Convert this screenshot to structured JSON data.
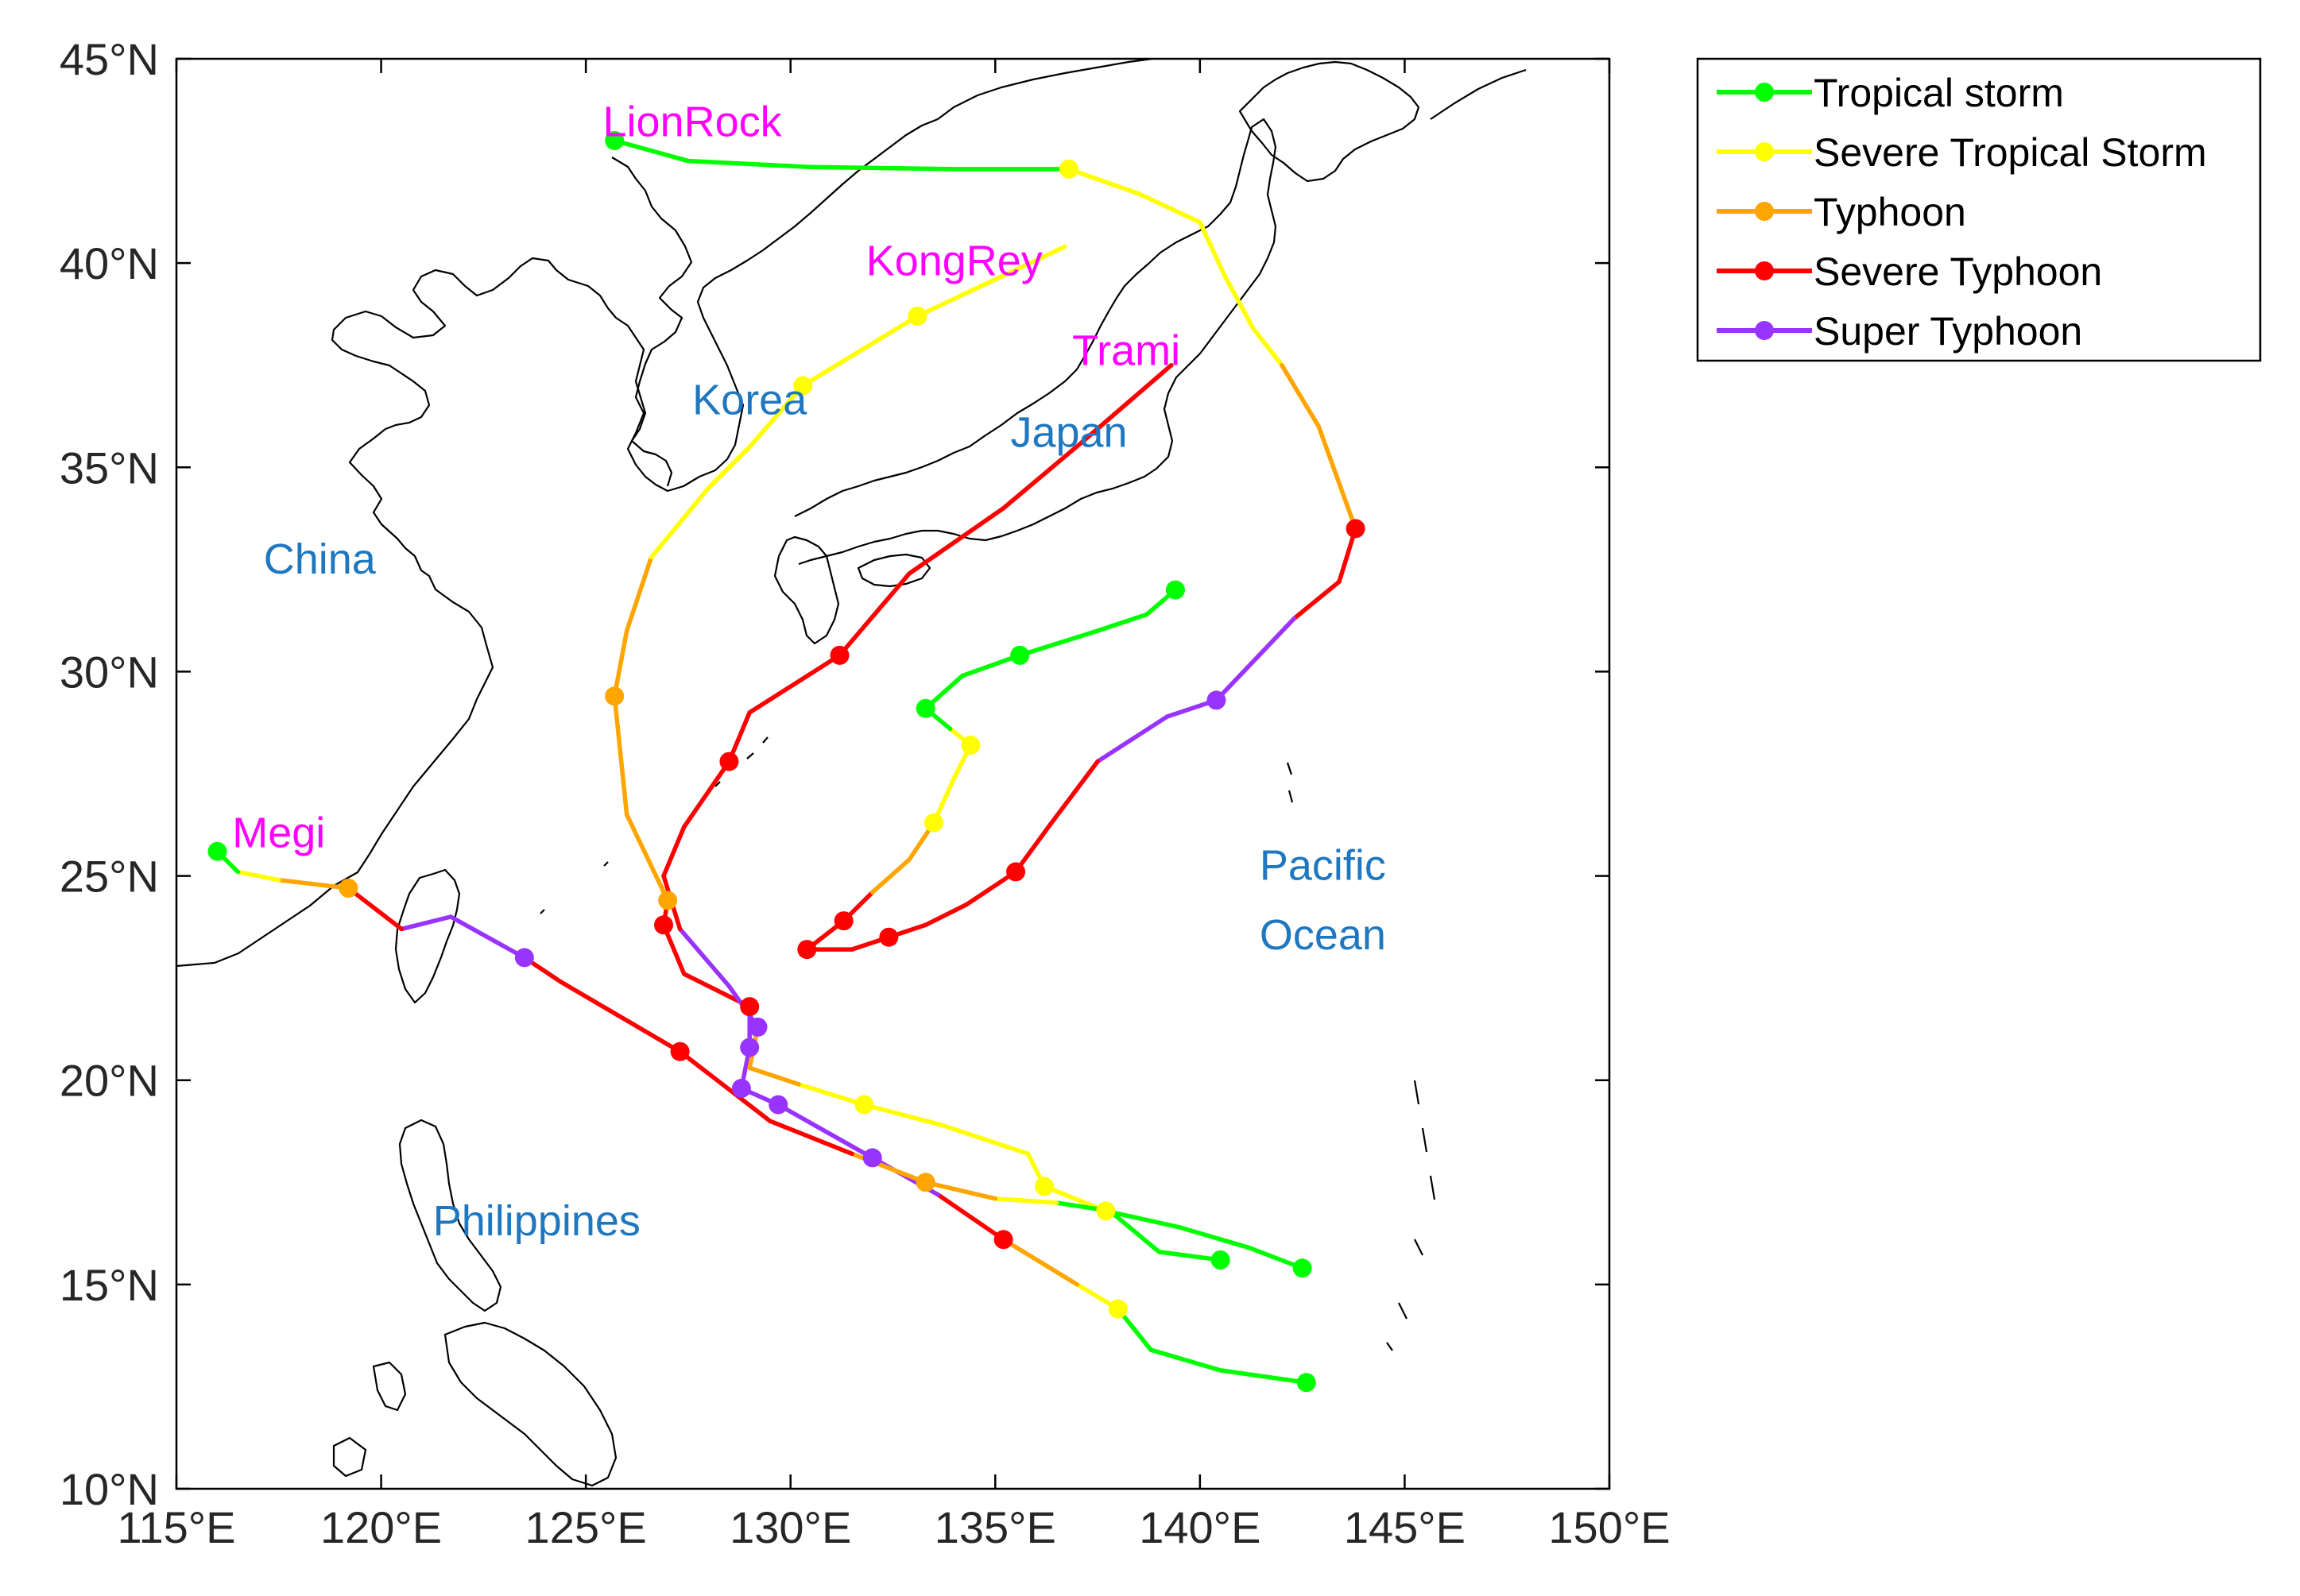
{
  "colors": {
    "Tropical storm": "#00ff00",
    "Severe Tropical Storm": "#ffff00",
    "Typhoon": "#ffa500",
    "Severe Typhoon": "#ff0000",
    "Super Typhoon": "#9933ff",
    "typhoon_name": "#ff00ff",
    "region_label": "#1f77c0",
    "coast": "#000000"
  },
  "axes": {
    "x_ticks": [
      {
        "value": 115,
        "label": "115°E"
      },
      {
        "value": 120,
        "label": "120°E"
      },
      {
        "value": 125,
        "label": "125°E"
      },
      {
        "value": 130,
        "label": "130°E"
      },
      {
        "value": 135,
        "label": "135°E"
      },
      {
        "value": 140,
        "label": "140°E"
      },
      {
        "value": 145,
        "label": "145°E"
      },
      {
        "value": 150,
        "label": "150°E"
      }
    ],
    "y_ticks": [
      {
        "value": 10,
        "label": "10°N"
      },
      {
        "value": 15,
        "label": "15°N"
      },
      {
        "value": 20,
        "label": "20°N"
      },
      {
        "value": 25,
        "label": "25°N"
      },
      {
        "value": 30,
        "label": "30°N"
      },
      {
        "value": 35,
        "label": "35°N"
      },
      {
        "value": 40,
        "label": "40°N"
      },
      {
        "value": 45,
        "label": "45°N"
      }
    ],
    "lon_range": [
      115,
      150
    ],
    "lat_range": [
      10,
      45
    ]
  },
  "legend": {
    "placement": "outside-top-right",
    "entries": [
      {
        "label": "Tropical storm",
        "category": "Tropical storm"
      },
      {
        "label": "Severe Tropical Storm",
        "category": "Severe Tropical Storm"
      },
      {
        "label": "Typhoon",
        "category": "Typhoon"
      },
      {
        "label": "Severe Typhoon",
        "category": "Severe Typhoon"
      },
      {
        "label": "Super Typhoon",
        "category": "Super Typhoon"
      }
    ]
  },
  "region_labels": [
    {
      "text": "Korea",
      "lon": 129.0,
      "lat": 36.3
    },
    {
      "text": "Japan",
      "lon": 136.8,
      "lat": 35.5
    },
    {
      "text": "China",
      "lon": 118.5,
      "lat": 32.4
    },
    {
      "text": "Pacific",
      "lon": 143.0,
      "lat": 24.9
    },
    {
      "text": "Ocean",
      "lon": 143.0,
      "lat": 23.2
    },
    {
      "text": "Philippines",
      "lon": 123.8,
      "lat": 16.2
    }
  ],
  "typhoon_names": [
    {
      "text": "LionRock",
      "lon": 127.6,
      "lat": 43.1
    },
    {
      "text": "KongRey",
      "lon": 134.0,
      "lat": 39.7
    },
    {
      "text": "Trami",
      "lon": 138.2,
      "lat": 37.5
    },
    {
      "text": "Megi",
      "lon": 117.5,
      "lat": 25.7
    }
  ],
  "tracks": [
    {
      "name": "LionRock",
      "points": [
        [
          125.7,
          43.0,
          "Tropical storm"
        ],
        [
          127.5,
          42.5,
          "Tropical storm"
        ],
        [
          130.5,
          42.35,
          "Tropical storm"
        ],
        [
          134.0,
          42.3,
          "Tropical storm"
        ],
        [
          136.8,
          42.3,
          "Severe Tropical Storm"
        ],
        [
          138.5,
          41.7,
          "Severe Tropical Storm"
        ],
        [
          140.0,
          41.0,
          "Severe Tropical Storm"
        ],
        [
          140.6,
          39.7,
          "Severe Tropical Storm"
        ],
        [
          141.3,
          38.4,
          "Severe Tropical Storm"
        ],
        [
          142.0,
          37.5,
          "Typhoon"
        ],
        [
          142.9,
          36.0,
          "Typhoon"
        ],
        [
          143.8,
          33.5,
          "Severe Typhoon"
        ],
        [
          143.4,
          32.2,
          "Severe Typhoon"
        ],
        [
          142.3,
          31.3,
          "Super Typhoon"
        ],
        [
          140.4,
          29.3,
          "Super Typhoon"
        ],
        [
          139.2,
          28.9,
          "Super Typhoon"
        ],
        [
          137.5,
          27.8,
          "Severe Typhoon"
        ],
        [
          136.3,
          26.2,
          "Severe Typhoon"
        ],
        [
          135.5,
          25.1,
          "Severe Typhoon"
        ],
        [
          134.3,
          24.3,
          "Severe Typhoon"
        ],
        [
          133.3,
          23.8,
          "Severe Typhoon"
        ],
        [
          132.4,
          23.5,
          "Severe Typhoon"
        ],
        [
          131.5,
          23.2,
          "Severe Typhoon"
        ],
        [
          130.4,
          23.2,
          "Severe Typhoon"
        ],
        [
          131.3,
          23.9,
          "Severe Typhoon"
        ],
        [
          132.0,
          24.6,
          "Typhoon"
        ],
        [
          132.9,
          25.4,
          "Typhoon"
        ],
        [
          133.5,
          26.3,
          "Severe Tropical Storm"
        ],
        [
          134.0,
          27.4,
          "Severe Tropical Storm"
        ],
        [
          134.4,
          28.2,
          "Severe Tropical Storm"
        ],
        [
          133.9,
          28.6,
          "Tropical storm"
        ],
        [
          133.3,
          29.1,
          "Tropical storm"
        ],
        [
          134.2,
          29.9,
          "Tropical storm"
        ],
        [
          135.6,
          30.4,
          "Tropical storm"
        ],
        [
          137.5,
          31.0,
          "Tropical storm"
        ],
        [
          138.7,
          31.4,
          "Tropical storm"
        ],
        [
          139.4,
          32.0,
          "Tropical storm"
        ]
      ],
      "markers": [
        [
          125.7,
          43.0
        ],
        [
          136.8,
          42.3
        ],
        [
          143.8,
          33.5
        ],
        [
          140.4,
          29.3
        ],
        [
          135.5,
          25.1
        ],
        [
          132.4,
          23.5
        ],
        [
          130.4,
          23.2
        ],
        [
          131.3,
          23.9
        ],
        [
          133.5,
          26.3
        ],
        [
          134.4,
          28.2
        ],
        [
          133.3,
          29.1
        ],
        [
          135.6,
          30.4
        ],
        [
          139.4,
          32.0
        ]
      ]
    },
    {
      "name": "KongRey",
      "points": [
        [
          142.6,
          12.6,
          "Tropical storm"
        ],
        [
          140.5,
          12.9,
          "Tropical storm"
        ],
        [
          138.8,
          13.4,
          "Tropical storm"
        ],
        [
          138.0,
          14.4,
          "Severe Tropical Storm"
        ],
        [
          137.0,
          15.0,
          "Typhoon"
        ],
        [
          135.2,
          16.1,
          "Severe Typhoon"
        ],
        [
          133.6,
          17.2,
          "Super Typhoon"
        ],
        [
          132.0,
          18.1,
          "Super Typhoon"
        ],
        [
          129.7,
          19.4,
          "Super Typhoon"
        ],
        [
          128.8,
          19.8,
          "Super Typhoon"
        ],
        [
          129.0,
          20.8,
          "Super Typhoon"
        ],
        [
          129.0,
          21.8,
          "Severe Typhoon"
        ],
        [
          127.4,
          22.6,
          "Severe Typhoon"
        ],
        [
          126.9,
          23.8,
          "Severe Typhoon"
        ],
        [
          127.0,
          24.4,
          "Typhoon"
        ],
        [
          126.0,
          26.5,
          "Typhoon"
        ],
        [
          125.7,
          29.4,
          "Typhoon"
        ],
        [
          126.0,
          31.0,
          "Typhoon"
        ],
        [
          126.6,
          32.8,
          "Severe Tropical Storm"
        ],
        [
          128.0,
          34.5,
          "Severe Tropical Storm"
        ],
        [
          129.0,
          35.5,
          "Severe Tropical Storm"
        ],
        [
          130.3,
          37.0,
          "Severe Tropical Storm"
        ],
        [
          133.1,
          38.7,
          "Severe Tropical Storm"
        ],
        [
          135.0,
          39.6,
          "Severe Tropical Storm"
        ],
        [
          136.7,
          40.4,
          "Severe Tropical Storm"
        ]
      ],
      "markers": [
        [
          142.6,
          12.6
        ],
        [
          138.0,
          14.4
        ],
        [
          135.2,
          16.1
        ],
        [
          132.0,
          18.1
        ],
        [
          129.7,
          19.4
        ],
        [
          128.8,
          19.8
        ],
        [
          129.0,
          20.8
        ],
        [
          129.0,
          21.8
        ],
        [
          126.9,
          23.8
        ],
        [
          127.0,
          24.4
        ],
        [
          125.7,
          29.4
        ],
        [
          130.3,
          37.0
        ],
        [
          133.1,
          38.7
        ]
      ]
    },
    {
      "name": "Trami",
      "points": [
        [
          142.5,
          15.4,
          "Tropical storm"
        ],
        [
          141.2,
          15.9,
          "Tropical storm"
        ],
        [
          139.5,
          16.4,
          "Tropical storm"
        ],
        [
          137.7,
          16.8,
          "Severe Tropical Storm"
        ],
        [
          136.2,
          17.4,
          "Severe Tropical Storm"
        ],
        [
          135.8,
          18.2,
          "Severe Tropical Storm"
        ],
        [
          133.7,
          18.9,
          "Severe Tropical Storm"
        ],
        [
          131.8,
          19.4,
          "Severe Tropical Storm"
        ],
        [
          130.2,
          19.9,
          "Typhoon"
        ],
        [
          129.0,
          20.3,
          "Typhoon"
        ],
        [
          129.2,
          21.3,
          "Super Typhoon"
        ],
        [
          128.5,
          22.3,
          "Super Typhoon"
        ],
        [
          127.3,
          23.7,
          "Severe Typhoon"
        ],
        [
          126.9,
          25.0,
          "Severe Typhoon"
        ],
        [
          127.4,
          26.2,
          "Severe Typhoon"
        ],
        [
          128.5,
          27.8,
          "Severe Typhoon"
        ],
        [
          129.0,
          29.0,
          "Severe Typhoon"
        ],
        [
          131.2,
          30.4,
          "Severe Typhoon"
        ],
        [
          132.9,
          32.4,
          "Severe Typhoon"
        ],
        [
          135.2,
          34.0,
          "Severe Typhoon"
        ],
        [
          137.1,
          35.6,
          "Severe Typhoon"
        ],
        [
          139.3,
          37.5,
          "Severe Typhoon"
        ]
      ],
      "markers": [
        [
          142.5,
          15.4
        ],
        [
          137.7,
          16.8
        ],
        [
          136.2,
          17.4
        ],
        [
          131.8,
          19.4
        ],
        [
          129.2,
          21.3
        ],
        [
          128.5,
          27.8
        ],
        [
          131.2,
          30.4
        ]
      ]
    },
    {
      "name": "Megi",
      "points": [
        [
          140.5,
          15.6,
          "Tropical storm"
        ],
        [
          139.0,
          15.8,
          "Tropical storm"
        ],
        [
          137.8,
          16.8,
          "Tropical storm"
        ],
        [
          136.5,
          17.0,
          "Severe Tropical Storm"
        ],
        [
          135.0,
          17.1,
          "Typhoon"
        ],
        [
          133.3,
          17.5,
          "Typhoon"
        ],
        [
          131.5,
          18.2,
          "Severe Typhoon"
        ],
        [
          129.5,
          19.0,
          "Severe Typhoon"
        ],
        [
          127.3,
          20.7,
          "Severe Typhoon"
        ],
        [
          124.4,
          22.4,
          "Severe Typhoon"
        ],
        [
          123.5,
          23.0,
          "Super Typhoon"
        ],
        [
          121.7,
          24.0,
          "Super Typhoon"
        ],
        [
          120.5,
          23.7,
          "Severe Typhoon"
        ],
        [
          119.2,
          24.7,
          "Typhoon"
        ],
        [
          117.5,
          24.9,
          "Severe Tropical Storm"
        ],
        [
          116.5,
          25.1,
          "Tropical storm"
        ],
        [
          116.0,
          25.6,
          "Tropical storm"
        ]
      ],
      "markers": [
        [
          140.5,
          15.6
        ],
        [
          133.3,
          17.5
        ],
        [
          127.3,
          20.7
        ],
        [
          123.5,
          23.0
        ],
        [
          119.2,
          24.7
        ],
        [
          116.0,
          25.6
        ]
      ]
    }
  ]
}
